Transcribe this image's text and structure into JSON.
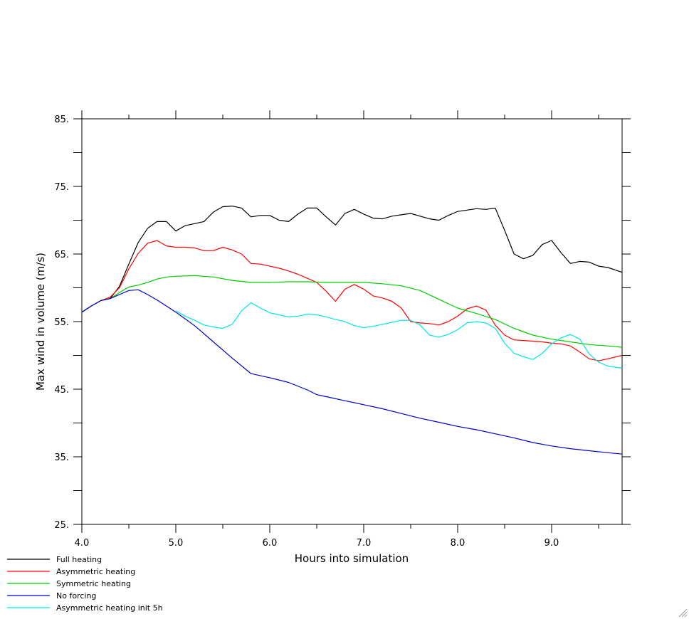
{
  "chart_data": {
    "type": "line",
    "title": "",
    "xlabel": "Hours into simulation",
    "ylabel": "Max wind in volume (m/s)",
    "xlim": [
      4.0,
      9.75
    ],
    "ylim": [
      25,
      85
    ],
    "x_ticks": [
      4.0,
      5.0,
      6.0,
      7.0,
      8.0,
      9.0
    ],
    "x_tick_labels": [
      "4.0",
      "5.0",
      "6.0",
      "7.0",
      "8.0",
      "9.0"
    ],
    "y_ticks": [
      25,
      35,
      45,
      55,
      65,
      75,
      85
    ],
    "y_tick_labels": [
      "25.",
      "35.",
      "45.",
      "55.",
      "65.",
      "75.",
      "85."
    ],
    "minor_x_step": 0.5,
    "minor_y_step": 5,
    "grid": false,
    "legend_position": "bottom-left",
    "series": [
      {
        "name": "Full heating",
        "color": "#000000",
        "x": [
          4.0,
          4.1,
          4.2,
          4.3,
          4.4,
          4.5,
          4.6,
          4.7,
          4.8,
          4.9,
          5.0,
          5.1,
          5.2,
          5.3,
          5.4,
          5.5,
          5.6,
          5.7,
          5.8,
          5.9,
          6.0,
          6.1,
          6.2,
          6.3,
          6.4,
          6.5,
          6.6,
          6.7,
          6.8,
          6.9,
          7.0,
          7.1,
          7.2,
          7.3,
          7.4,
          7.5,
          7.6,
          7.7,
          7.8,
          7.9,
          8.0,
          8.1,
          8.2,
          8.3,
          8.4,
          8.5,
          8.6,
          8.7,
          8.8,
          8.9,
          9.0,
          9.1,
          9.2,
          9.3,
          9.4,
          9.5,
          9.6,
          9.75
        ],
        "y": [
          56.4,
          57.3,
          58.1,
          58.4,
          60.2,
          63.5,
          66.7,
          68.8,
          69.8,
          69.8,
          68.4,
          69.2,
          69.5,
          69.8,
          71.2,
          72.0,
          72.1,
          71.8,
          70.5,
          70.7,
          70.7,
          70.0,
          69.8,
          70.9,
          71.8,
          71.8,
          70.5,
          69.3,
          71.0,
          71.6,
          70.9,
          70.3,
          70.2,
          70.6,
          70.8,
          71.0,
          70.6,
          70.2,
          70.0,
          70.7,
          71.3,
          71.5,
          71.7,
          71.6,
          71.8,
          68.5,
          65.0,
          64.3,
          64.8,
          66.4,
          67.0,
          65.2,
          63.6,
          63.9,
          63.8,
          63.2,
          63.0,
          62.3
        ]
      },
      {
        "name": "Asymmetric heating",
        "color": "#ff0000",
        "x": [
          4.0,
          4.1,
          4.2,
          4.3,
          4.4,
          4.5,
          4.6,
          4.7,
          4.8,
          4.9,
          5.0,
          5.1,
          5.2,
          5.3,
          5.4,
          5.5,
          5.6,
          5.7,
          5.8,
          5.9,
          6.0,
          6.1,
          6.2,
          6.3,
          6.4,
          6.5,
          6.6,
          6.7,
          6.8,
          6.9,
          7.0,
          7.1,
          7.2,
          7.3,
          7.4,
          7.5,
          7.6,
          7.7,
          7.8,
          7.9,
          8.0,
          8.1,
          8.2,
          8.3,
          8.4,
          8.5,
          8.6,
          8.7,
          8.8,
          8.9,
          9.0,
          9.1,
          9.2,
          9.3,
          9.4,
          9.5,
          9.6,
          9.75
        ],
        "y": [
          56.4,
          57.3,
          58.1,
          58.6,
          60.0,
          62.8,
          65.1,
          66.6,
          67.0,
          66.2,
          66.0,
          66.0,
          65.9,
          65.5,
          65.5,
          66.0,
          65.6,
          65.0,
          63.6,
          63.5,
          63.2,
          62.9,
          62.5,
          62.0,
          61.4,
          60.8,
          59.5,
          58.0,
          59.8,
          60.5,
          59.8,
          58.8,
          58.5,
          58.0,
          57.0,
          55.0,
          54.8,
          54.7,
          54.5,
          55.0,
          55.8,
          56.9,
          57.3,
          56.7,
          54.5,
          53.0,
          52.3,
          52.2,
          52.1,
          52.0,
          51.8,
          51.7,
          51.4,
          50.5,
          49.5,
          49.2,
          49.5,
          50.0
        ]
      },
      {
        "name": "Symmetric heating",
        "color": "#00cc00",
        "x": [
          4.0,
          4.1,
          4.2,
          4.3,
          4.4,
          4.5,
          4.6,
          4.7,
          4.8,
          4.9,
          5.0,
          5.2,
          5.4,
          5.6,
          5.8,
          6.0,
          6.2,
          6.4,
          6.6,
          6.8,
          7.0,
          7.2,
          7.4,
          7.6,
          7.8,
          8.0,
          8.2,
          8.4,
          8.6,
          8.8,
          9.0,
          9.2,
          9.4,
          9.6,
          9.75
        ],
        "y": [
          56.4,
          57.3,
          58.1,
          58.4,
          59.3,
          60.1,
          60.4,
          60.8,
          61.3,
          61.6,
          61.7,
          61.8,
          61.6,
          61.1,
          60.8,
          60.8,
          60.9,
          60.9,
          60.8,
          60.8,
          60.8,
          60.6,
          60.3,
          59.6,
          58.3,
          57.0,
          56.2,
          55.3,
          54.0,
          53.0,
          52.4,
          52.0,
          51.6,
          51.4,
          51.2
        ]
      },
      {
        "name": "No forcing",
        "color": "#0000cc",
        "x": [
          4.0,
          4.1,
          4.2,
          4.3,
          4.4,
          4.5,
          4.6,
          4.7,
          4.8,
          4.9,
          5.0,
          5.2,
          5.4,
          5.6,
          5.8,
          6.0,
          6.2,
          6.4,
          6.5,
          6.6,
          6.8,
          7.0,
          7.2,
          7.4,
          7.6,
          7.8,
          8.0,
          8.2,
          8.4,
          8.6,
          8.8,
          9.0,
          9.2,
          9.4,
          9.6,
          9.75
        ],
        "y": [
          56.4,
          57.3,
          58.1,
          58.4,
          59.0,
          59.6,
          59.7,
          59.0,
          58.2,
          57.3,
          56.4,
          54.4,
          52.0,
          49.6,
          47.3,
          46.7,
          46.0,
          44.9,
          44.2,
          43.9,
          43.3,
          42.7,
          42.1,
          41.4,
          40.7,
          40.1,
          39.5,
          39.0,
          38.4,
          37.8,
          37.1,
          36.6,
          36.2,
          35.9,
          35.6,
          35.4
        ]
      },
      {
        "name": "Asymmetric heating init 5h",
        "color": "#00e5e5",
        "x": [
          5.0,
          5.1,
          5.2,
          5.3,
          5.4,
          5.5,
          5.6,
          5.7,
          5.8,
          5.9,
          6.0,
          6.1,
          6.2,
          6.3,
          6.4,
          6.5,
          6.6,
          6.7,
          6.8,
          6.9,
          7.0,
          7.1,
          7.2,
          7.3,
          7.4,
          7.5,
          7.6,
          7.7,
          7.8,
          7.9,
          8.0,
          8.1,
          8.2,
          8.3,
          8.4,
          8.5,
          8.6,
          8.7,
          8.8,
          8.9,
          9.0,
          9.1,
          9.2,
          9.3,
          9.4,
          9.5,
          9.6,
          9.75
        ],
        "y": [
          56.6,
          55.8,
          55.2,
          54.5,
          54.2,
          54.0,
          54.6,
          56.6,
          57.8,
          57.0,
          56.3,
          56.0,
          55.7,
          55.8,
          56.1,
          56.0,
          55.7,
          55.3,
          55.0,
          54.4,
          54.1,
          54.3,
          54.6,
          54.9,
          55.2,
          55.2,
          54.5,
          53.0,
          52.7,
          53.1,
          53.8,
          54.8,
          55.0,
          54.8,
          54.0,
          51.8,
          50.3,
          49.8,
          49.4,
          50.3,
          51.7,
          52.6,
          53.1,
          52.4,
          50.2,
          49.0,
          48.4,
          48.1
        ]
      }
    ]
  }
}
